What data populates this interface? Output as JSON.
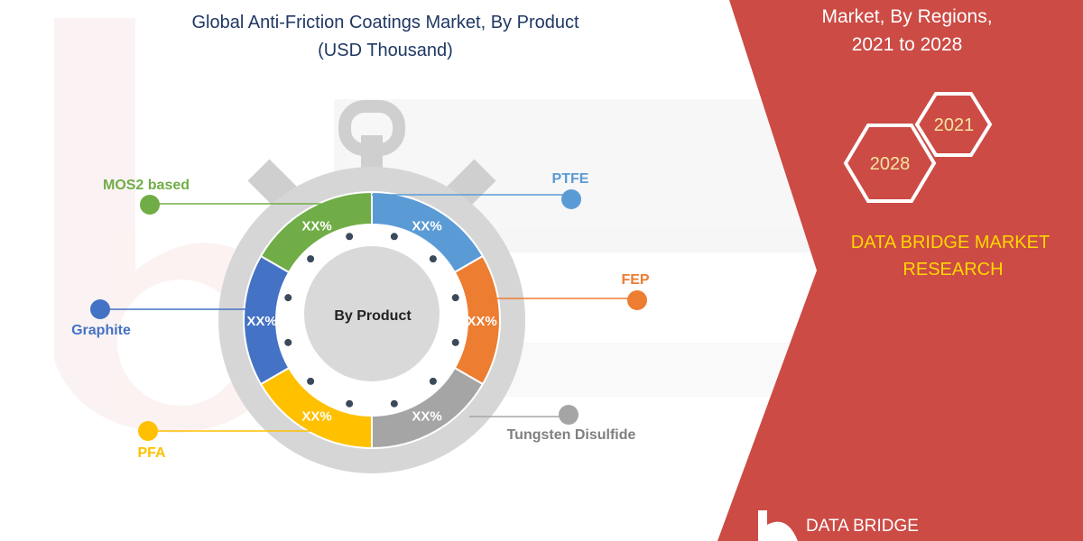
{
  "chart": {
    "title_line1": "Global Anti-Friction Coatings Market, By Product",
    "title_line2": "(USD Thousand)",
    "center_label": "By Product"
  },
  "chart_data": {
    "type": "pie",
    "title": "Global Anti-Friction Coatings Market, By Product (USD Thousand)",
    "segments": [
      {
        "name": "PTFE",
        "label": "XX%",
        "color": "#5b9bd5"
      },
      {
        "name": "FEP",
        "label": "XX%",
        "color": "#ed7d31"
      },
      {
        "name": "Tungsten Disulfide",
        "label": "XX%",
        "color": "#a5a5a5"
      },
      {
        "name": "PFA",
        "label": "XX%",
        "color": "#ffc000"
      },
      {
        "name": "Graphite",
        "label": "XX%",
        "color": "#4472c4"
      },
      {
        "name": "MOS2 based",
        "label": "XX%",
        "color": "#70ad47"
      }
    ]
  },
  "panel": {
    "title_line1": "Market, By Regions,",
    "title_line2": "2021 to 2028",
    "hex_year_front": "2028",
    "hex_year_back": "2021",
    "brand_line1": "DATA BRIDGE MARKET",
    "brand_line2": "RESEARCH",
    "logo_text": "DATA BRIDGE",
    "accent_color": "#cc4b45",
    "brand_color": "#ffd700"
  }
}
